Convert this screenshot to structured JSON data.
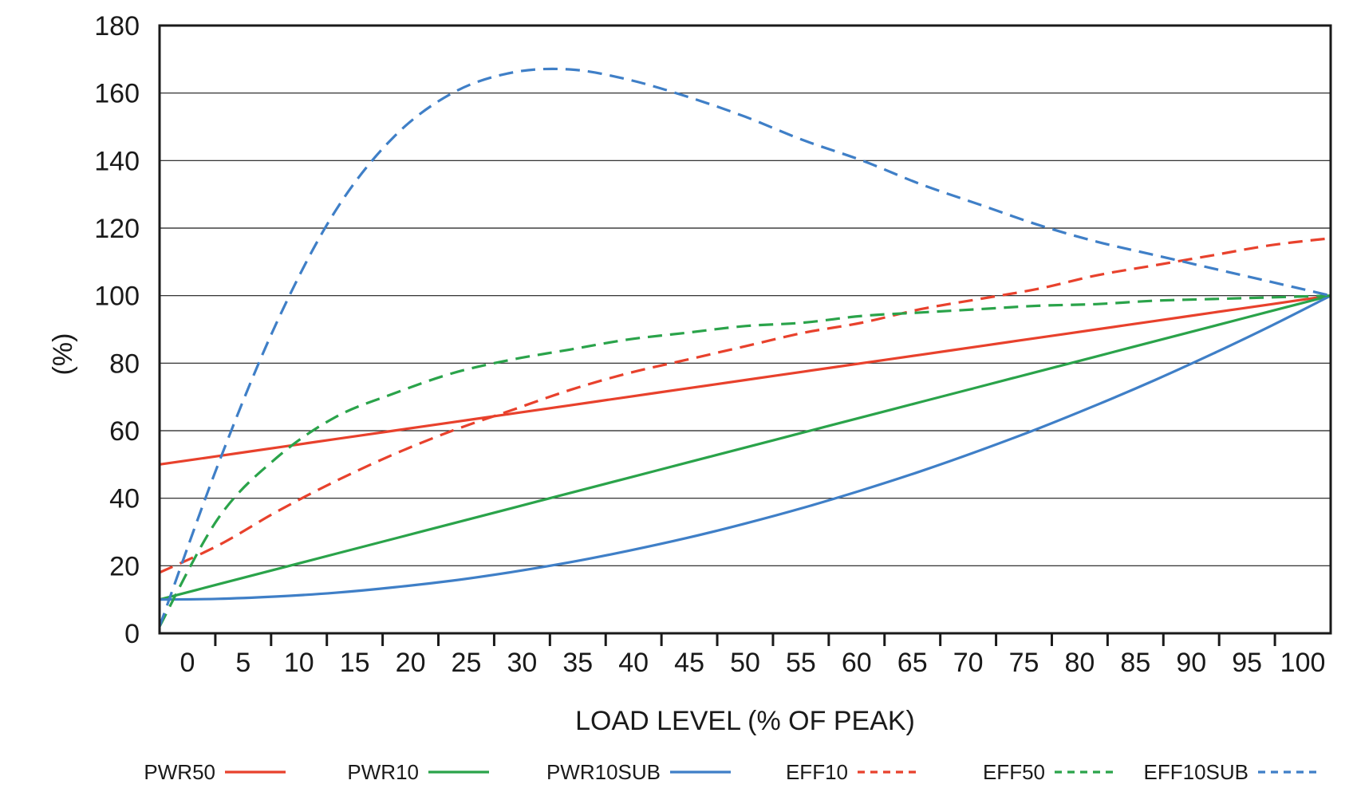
{
  "chart_data": {
    "type": "line",
    "title": "",
    "xlabel": "LOAD LEVEL (% OF PEAK)",
    "ylabel": "(%)",
    "ylim": [
      0,
      180
    ],
    "yticks": [
      "0",
      "20",
      "40",
      "60",
      "80",
      "100",
      "120",
      "140",
      "160",
      "180"
    ],
    "xticks": [
      "0",
      "5",
      "10",
      "15",
      "20",
      "25",
      "30",
      "35",
      "40",
      "45",
      "50",
      "55",
      "60",
      "65",
      "70",
      "75",
      "80",
      "85",
      "90",
      "95",
      "100"
    ],
    "x": [
      0,
      5,
      10,
      15,
      20,
      25,
      30,
      35,
      40,
      45,
      50,
      55,
      60,
      65,
      70,
      75,
      80,
      85,
      90,
      95,
      100
    ],
    "grid": "horizontal",
    "legend_position": "bottom",
    "series": [
      {
        "name": "PWR50",
        "color": "#e8412c",
        "dash": "solid",
        "values": [
          50,
          52.5,
          55,
          57.5,
          60,
          62.5,
          65,
          67.5,
          70,
          72.5,
          75,
          77.5,
          80,
          82.5,
          85,
          87.5,
          90,
          92.5,
          95,
          97.5,
          100
        ]
      },
      {
        "name": "PWR10",
        "color": "#2aa34a",
        "dash": "solid",
        "values": [
          10,
          14.5,
          19,
          23.5,
          28,
          32.5,
          37,
          41.5,
          46,
          50.5,
          55,
          59.5,
          64,
          68.5,
          73,
          77.5,
          82,
          86.5,
          91,
          95.5,
          100
        ]
      },
      {
        "name": "PWR10SUB",
        "color": "#3f7fc7",
        "dash": "solid",
        "values": [
          10,
          10.2,
          10.9,
          12,
          13.6,
          15.6,
          18.1,
          21,
          24.4,
          28.2,
          32.5,
          37.2,
          42.4,
          48,
          54.1,
          60.6,
          67.6,
          75,
          82.9,
          91.2,
          100
        ]
      },
      {
        "name": "EFF10",
        "color": "#e8412c",
        "dash": "dashed",
        "values": [
          18,
          26,
          36,
          45,
          53,
          60,
          66,
          72,
          77,
          81,
          85,
          89,
          92,
          96,
          99,
          102,
          106,
          109,
          112,
          115,
          117
        ]
      },
      {
        "name": "EFF50",
        "color": "#2aa34a",
        "dash": "dashed",
        "values": [
          2,
          34,
          52,
          64,
          71,
          77,
          81,
          84,
          87,
          89,
          91,
          92,
          94,
          95,
          96,
          97,
          97.5,
          98.5,
          99,
          99.5,
          100
        ]
      },
      {
        "name": "EFF10SUB",
        "color": "#3f7fc7",
        "dash": "dashed",
        "values": [
          2,
          50,
          92,
          125,
          147,
          160,
          166,
          167,
          164,
          159,
          153,
          146,
          140,
          133,
          127,
          121,
          116,
          112,
          108,
          104,
          100
        ]
      }
    ]
  }
}
